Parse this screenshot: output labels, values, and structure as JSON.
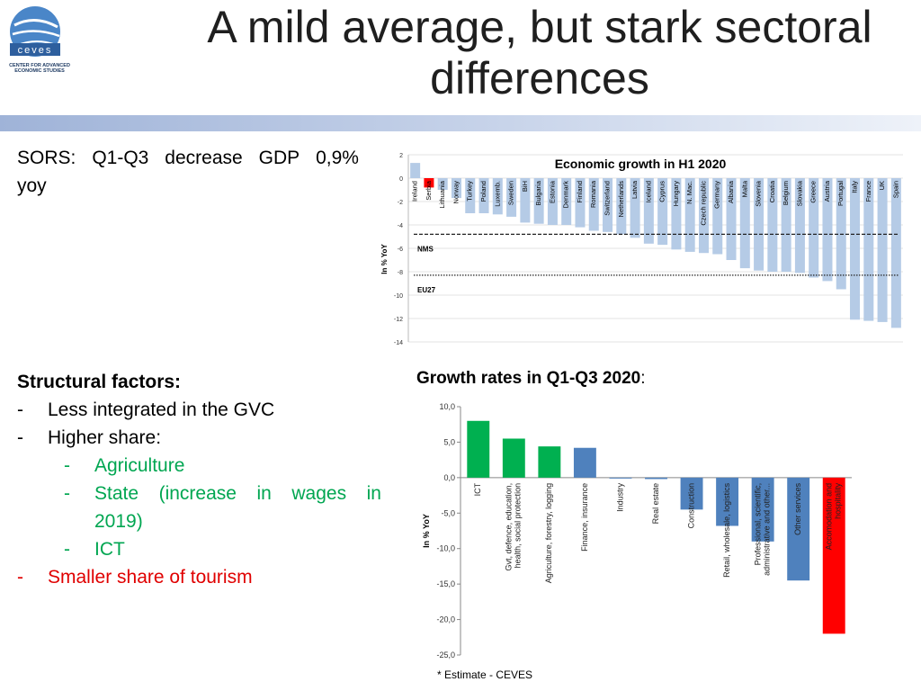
{
  "logo": {
    "brand": "ceves",
    "subtitle": "CENTER FOR ADVANCED ECONOMIC STUDIES"
  },
  "slide": {
    "title_line1": "A mild average, but stark sectoral",
    "title_line2": "differences"
  },
  "lead": {
    "words": [
      "SORS:",
      "Q1-Q3",
      "decrease",
      "GDP",
      "0,9%"
    ],
    "line2": "yoy"
  },
  "factors": {
    "heading": "Structural factors:",
    "dash": "-",
    "item1": "Less integrated in the GVC",
    "item2": "Higher share:",
    "sub1": "Agriculture",
    "sub2_words": [
      "State",
      "(increase",
      "in",
      "wages",
      "in"
    ],
    "sub2_line2": "2019)",
    "sub3": "ICT",
    "item3": "Smaller share of tourism"
  },
  "chart2_heading": {
    "text": "Growth rates in Q1-Q3 2020",
    "colon": ":"
  },
  "footnote": "* Estimate - CEVES",
  "chart_data": [
    {
      "type": "bar",
      "title": "Economic growth in H1 2020",
      "ylabel": "In % YoY",
      "ylim": [
        -14,
        2
      ],
      "yticks": [
        "2",
        "0",
        "-2",
        "-4",
        "-6",
        "-8",
        "-10",
        "-12",
        "-14"
      ],
      "categories": [
        "Ireland",
        "Serbia",
        "Lithuania",
        "Norway",
        "Turkey",
        "Poland",
        "Luxemb.",
        "Sweden",
        "BiH",
        "Bulgaria",
        "Estonia",
        "Denmark",
        "Finland",
        "Romania",
        "Switzerland",
        "Netherlands",
        "Latvia",
        "Iceland",
        "Cyprus",
        "Hungary",
        "N. Mac.",
        "Czech republic",
        "Germany",
        "Albania",
        "Malta",
        "Slovenia",
        "Croatia",
        "Belgium",
        "Slovakia",
        "Greece",
        "Austria",
        "Portugal",
        "Italy",
        "France",
        "UK",
        "Spain"
      ],
      "values": [
        1.3,
        -0.8,
        -1.0,
        -1.7,
        -3.0,
        -3.0,
        -3.1,
        -3.3,
        -3.8,
        -3.9,
        -4.0,
        -4.0,
        -4.2,
        -4.5,
        -4.6,
        -4.8,
        -5.1,
        -5.6,
        -5.7,
        -6.1,
        -6.3,
        -6.4,
        -6.5,
        -7.0,
        -7.7,
        -7.9,
        -8.0,
        -8.0,
        -8.1,
        -8.5,
        -8.8,
        -9.5,
        -12.1,
        -12.2,
        -12.3,
        -12.8
      ],
      "highlight": "Serbia",
      "bar_color": "#b5cbe6",
      "highlight_color": "#ff0000",
      "reference_lines": [
        {
          "label": "NMS",
          "value": -4.8
        },
        {
          "label": "EU27",
          "value": -8.3
        }
      ]
    },
    {
      "type": "bar",
      "title": "Growth rates in Q1-Q3 2020",
      "ylabel": "In % YoY",
      "ylim": [
        -25,
        10
      ],
      "yticks": [
        "10,0",
        "5,0",
        "0,0",
        "-5,0",
        "-10,0",
        "-15,0",
        "-20,0",
        "-25,0"
      ],
      "categories": [
        "ICT",
        "Gvt, defence, education, health, social protection",
        "Agriculture, forestry, logging",
        "Finance, insurance",
        "Industry",
        "Real estate",
        "Construction",
        "Retail, wholesale, logistics",
        "Professional, scientific, administrative and other...",
        "Other services",
        "Accomodation and hospitality"
      ],
      "label_lines": [
        [
          "ICT"
        ],
        [
          "Gvt, defence, education,",
          "health, social protection"
        ],
        [
          "Agriculture, forestry, logging"
        ],
        [
          "Finance, insurance"
        ],
        [
          "Industry"
        ],
        [
          "Real estate"
        ],
        [
          "Construction"
        ],
        [
          "Retail, wholesale, logistics"
        ],
        [
          "Professional, scientific,",
          "administrative and other..."
        ],
        [
          "Other services"
        ],
        [
          "Accomodation and",
          "hospitality"
        ]
      ],
      "values": [
        8.0,
        5.5,
        4.4,
        4.2,
        0.0,
        -0.2,
        -4.5,
        -6.8,
        -9.0,
        -14.5,
        -22.0
      ],
      "colors": [
        "#00b050",
        "#00b050",
        "#00b050",
        "#4f81bd",
        "#4f81bd",
        "#4f81bd",
        "#4f81bd",
        "#4f81bd",
        "#4f81bd",
        "#4f81bd",
        "#ff0000"
      ]
    }
  ]
}
